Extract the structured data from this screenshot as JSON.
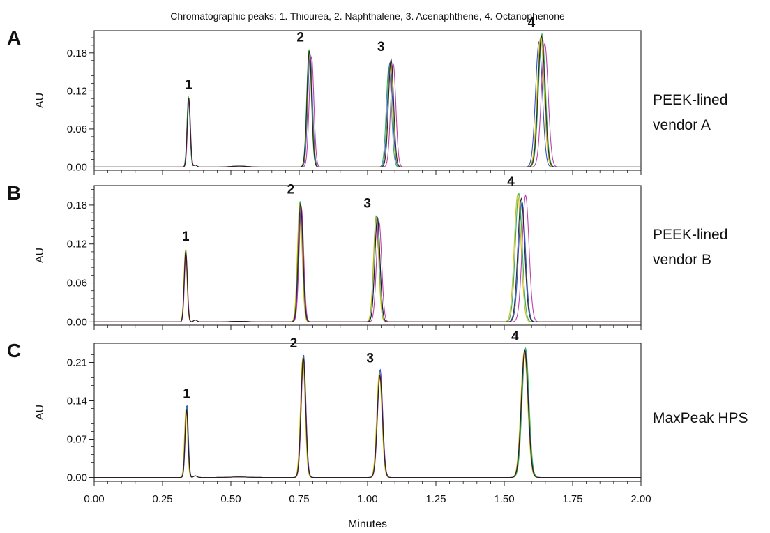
{
  "figure": {
    "title": "Chromatographic peaks: 1. Thiourea, 2. Naphthalene, 3. Acenaphthene, 4. Octanophenone",
    "xlabel": "Minutes",
    "x_ticks": [
      "0.00",
      "0.25",
      "0.50",
      "0.75",
      "1.00",
      "1.25",
      "1.50",
      "1.75",
      "2.00"
    ]
  },
  "chart_data": [
    {
      "type": "line",
      "panel": "A",
      "label_lines": [
        "PEEK-lined",
        "vendor A"
      ],
      "ylabel": "AU",
      "xlim": [
        0,
        2
      ],
      "ylim": [
        -0.005,
        0.215
      ],
      "y_ticks": [
        "0.00",
        "0.06",
        "0.12",
        "0.18"
      ],
      "peak_labels": [
        "1",
        "2",
        "3",
        "4"
      ],
      "peaks": [
        {
          "label": "1",
          "compound": "Thiourea",
          "retention_min": 0.345,
          "height_au": 0.11
        },
        {
          "label": "2",
          "compound": "Naphthalene",
          "retention_min": 0.79,
          "height_au": 0.185
        },
        {
          "label": "3",
          "compound": "Acenaphthene",
          "retention_min": 1.085,
          "height_au": 0.17
        },
        {
          "label": "4",
          "compound": "Octanophenone",
          "retention_min": 1.635,
          "height_au": 0.208
        }
      ],
      "series": [
        {
          "color": "#1f3fbf",
          "peaks": [
            [
              0.345,
              0.108,
              0.0055
            ],
            [
              0.79,
              0.178,
              0.0085
            ],
            [
              1.082,
              0.165,
              0.0095
            ],
            [
              1.627,
              0.197,
              0.0125
            ]
          ]
        },
        {
          "color": "#22a64a",
          "peaks": [
            [
              0.345,
              0.112,
              0.0055
            ],
            [
              0.786,
              0.186,
              0.0085
            ],
            [
              1.078,
              0.158,
              0.0095
            ],
            [
              1.638,
              0.21,
              0.0125
            ]
          ]
        },
        {
          "color": "#c9b400",
          "peaks": [
            [
              0.346,
              0.11,
              0.0055
            ],
            [
              0.788,
              0.18,
              0.0085
            ],
            [
              1.085,
              0.162,
              0.0095
            ],
            [
              1.633,
              0.205,
              0.0125
            ]
          ]
        },
        {
          "color": "#b52fa3",
          "peaks": [
            [
              0.347,
              0.105,
              0.0055
            ],
            [
              0.795,
              0.175,
              0.0085
            ],
            [
              1.094,
              0.163,
              0.0095
            ],
            [
              1.648,
              0.195,
              0.0125
            ]
          ]
        },
        {
          "color": "#1a1a1a",
          "peaks": [
            [
              0.346,
              0.11,
              0.0055
            ],
            [
              0.787,
              0.183,
              0.0085
            ],
            [
              1.086,
              0.17,
              0.0095
            ],
            [
              1.636,
              0.207,
              0.0125
            ]
          ]
        }
      ]
    },
    {
      "type": "line",
      "panel": "B",
      "label_lines": [
        "PEEK-lined",
        "vendor B"
      ],
      "ylabel": "AU",
      "xlim": [
        0,
        2
      ],
      "ylim": [
        -0.005,
        0.21
      ],
      "y_ticks": [
        "0.00",
        "0.06",
        "0.12",
        "0.18"
      ],
      "peak_labels": [
        "1",
        "2",
        "3",
        "4"
      ],
      "peaks": [
        {
          "label": "1",
          "compound": "Thiourea",
          "retention_min": 0.335,
          "height_au": 0.112
        },
        {
          "label": "2",
          "compound": "Naphthalene",
          "retention_min": 0.755,
          "height_au": 0.185
        },
        {
          "label": "3",
          "compound": "Acenaphthene",
          "retention_min": 1.035,
          "height_au": 0.163
        },
        {
          "label": "4",
          "compound": "Octanophenone",
          "retention_min": 1.56,
          "height_au": 0.197
        }
      ],
      "series": [
        {
          "color": "#1f3fbf",
          "peaks": [
            [
              0.335,
              0.108,
              0.0055
            ],
            [
              0.757,
              0.178,
              0.0085
            ],
            [
              1.036,
              0.158,
              0.0095
            ],
            [
              1.565,
              0.185,
              0.0125
            ]
          ]
        },
        {
          "color": "#22a64a",
          "peaks": [
            [
              0.335,
              0.112,
              0.0055
            ],
            [
              0.753,
              0.186,
              0.0085
            ],
            [
              1.032,
              0.164,
              0.0095
            ],
            [
              1.553,
              0.198,
              0.0125
            ]
          ]
        },
        {
          "color": "#c9b400",
          "peaks": [
            [
              0.334,
              0.111,
              0.0055
            ],
            [
              0.752,
              0.182,
              0.0085
            ],
            [
              1.031,
              0.16,
              0.0095
            ],
            [
              1.549,
              0.196,
              0.0125
            ]
          ]
        },
        {
          "color": "#b52fa3",
          "peaks": [
            [
              0.336,
              0.106,
              0.0055
            ],
            [
              0.758,
              0.176,
              0.0085
            ],
            [
              1.042,
              0.155,
              0.0095
            ],
            [
              1.578,
              0.195,
              0.0125
            ]
          ]
        },
        {
          "color": "#1a1a1a",
          "peaks": [
            [
              0.335,
              0.11,
              0.0055
            ],
            [
              0.755,
              0.183,
              0.0085
            ],
            [
              1.036,
              0.162,
              0.0095
            ],
            [
              1.562,
              0.19,
              0.0125
            ]
          ]
        }
      ]
    },
    {
      "type": "line",
      "panel": "C",
      "label_lines": [
        "MaxPeak HPS"
      ],
      "ylabel": "AU",
      "xlim": [
        0,
        2
      ],
      "ylim": [
        -0.007,
        0.245
      ],
      "y_ticks": [
        "0.00",
        "0.07",
        "0.14",
        "0.21"
      ],
      "peak_labels": [
        "1",
        "2",
        "3",
        "4"
      ],
      "peaks": [
        {
          "label": "1",
          "compound": "Thiourea",
          "retention_min": 0.338,
          "height_au": 0.13
        },
        {
          "label": "2",
          "compound": "Naphthalene",
          "retention_min": 0.765,
          "height_au": 0.222
        },
        {
          "label": "3",
          "compound": "Acenaphthene",
          "retention_min": 1.045,
          "height_au": 0.195
        },
        {
          "label": "4",
          "compound": "Octanophenone",
          "retention_min": 1.575,
          "height_au": 0.235
        }
      ],
      "series": [
        {
          "color": "#1f3fbf",
          "peaks": [
            [
              0.339,
              0.133,
              0.0055
            ],
            [
              0.766,
              0.224,
              0.0085
            ],
            [
              1.046,
              0.197,
              0.0095
            ],
            [
              1.576,
              0.233,
              0.0125
            ]
          ]
        },
        {
          "color": "#22a64a",
          "peaks": [
            [
              0.338,
              0.128,
              0.0055
            ],
            [
              0.764,
              0.22,
              0.0085
            ],
            [
              1.044,
              0.192,
              0.0095
            ],
            [
              1.578,
              0.236,
              0.0125
            ]
          ]
        },
        {
          "color": "#c9b400",
          "peaks": [
            [
              0.336,
              0.126,
              0.0055
            ],
            [
              0.763,
              0.218,
              0.0085
            ],
            [
              1.043,
              0.19,
              0.0095
            ],
            [
              1.573,
              0.23,
              0.0125
            ]
          ]
        },
        {
          "color": "#b52fa3",
          "peaks": [
            [
              0.338,
              0.122,
              0.0055
            ],
            [
              0.766,
              0.215,
              0.0085
            ],
            [
              1.046,
              0.188,
              0.0095
            ],
            [
              1.575,
              0.228,
              0.0125
            ]
          ]
        },
        {
          "color": "#1a1a1a",
          "peaks": [
            [
              0.338,
              0.125,
              0.0055
            ],
            [
              0.765,
              0.219,
              0.0085
            ],
            [
              1.045,
              0.186,
              0.0095
            ],
            [
              1.575,
              0.232,
              0.0125
            ]
          ]
        }
      ]
    }
  ]
}
